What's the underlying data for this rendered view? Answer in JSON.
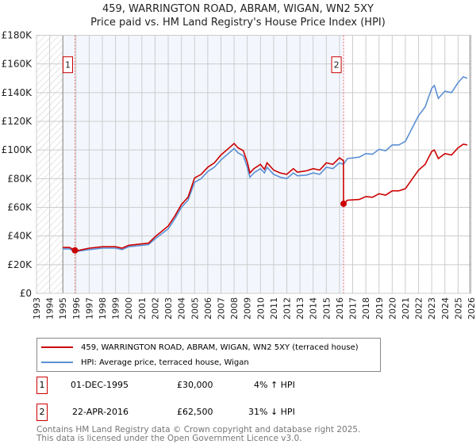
{
  "title": "459, WARRINGTON ROAD, ABRAM, WIGAN, WN2 5XY",
  "subtitle": "Price paid vs. HM Land Registry's House Price Index (HPI)",
  "chart_data": {
    "type": "line",
    "xlim": [
      1993,
      2026
    ],
    "ylim": [
      0,
      180000
    ],
    "yticks": [
      0,
      20000,
      40000,
      60000,
      80000,
      100000,
      120000,
      140000,
      160000,
      180000
    ],
    "ytick_labels": [
      "£0",
      "£20K",
      "£40K",
      "£60K",
      "£80K",
      "£100K",
      "£120K",
      "£140K",
      "£160K",
      "£180K"
    ],
    "xticks": [
      1993,
      1994,
      1995,
      1996,
      1997,
      1998,
      1999,
      2000,
      2001,
      2002,
      2003,
      2004,
      2005,
      2006,
      2007,
      2008,
      2009,
      2010,
      2011,
      2012,
      2013,
      2014,
      2015,
      2016,
      2017,
      2018,
      2019,
      2020,
      2021,
      2022,
      2023,
      2024,
      2025,
      2026
    ],
    "data_range": [
      1995,
      2025.9
    ],
    "series": [
      {
        "name": "459, WARRINGTON ROAD, ABRAM, WIGAN, WN2 5XY (terraced house)",
        "color": "#cc0000",
        "x": [
          1995,
          1995.5,
          1995.92,
          1996.2,
          1997,
          1998,
          1999,
          1999.5,
          2000,
          2001,
          2001.5,
          2002,
          2003,
          2003.5,
          2004,
          2004.5,
          2005,
          2005.5,
          2006,
          2006.5,
          2007,
          2007.5,
          2008,
          2008.3,
          2008.7,
          2009,
          2009.2,
          2009.5,
          2010,
          2010.3,
          2010.5,
          2011,
          2011.5,
          2012,
          2012.5,
          2012.8,
          2013.5,
          2014,
          2014.5,
          2015,
          2015.5,
          2016,
          2016.3,
          2016.31,
          2016.6,
          2017.5,
          2018,
          2018.5,
          2019,
          2019.5,
          2020,
          2020.5,
          2021,
          2021.5,
          2022,
          2022.5,
          2023,
          2023.2,
          2023.5,
          2024,
          2024.5,
          2025,
          2025.4,
          2025.7
        ],
        "y": [
          32000,
          32000,
          30000,
          30000,
          31500,
          32500,
          32500,
          31500,
          33500,
          34500,
          35000,
          39500,
          47000,
          54000,
          62000,
          67000,
          80500,
          83000,
          88000,
          91000,
          96500,
          100500,
          104500,
          101500,
          99500,
          91500,
          84000,
          87000,
          90000,
          86500,
          91000,
          86000,
          84000,
          83000,
          87000,
          84500,
          85500,
          87000,
          86000,
          91000,
          90000,
          94500,
          92500,
          62500,
          65000,
          65500,
          67500,
          67000,
          69500,
          68500,
          71500,
          71500,
          73000,
          79500,
          86000,
          90000,
          99000,
          100000,
          94000,
          97500,
          96500,
          101500,
          104000,
          103500
        ]
      },
      {
        "name": "HPI: Average price, terraced house, Wigan",
        "color": "#5b8fd4",
        "x": [
          1995,
          1995.5,
          1995.92,
          1996.2,
          1997,
          1998,
          1999,
          1999.5,
          2000,
          2001,
          2001.5,
          2002,
          2003,
          2003.5,
          2004,
          2004.5,
          2005,
          2005.5,
          2006,
          2006.5,
          2007,
          2007.5,
          2008,
          2008.3,
          2008.7,
          2009,
          2009.2,
          2009.5,
          2010,
          2010.3,
          2010.5,
          2011,
          2011.5,
          2012,
          2012.5,
          2012.8,
          2013.5,
          2014,
          2014.5,
          2015,
          2015.5,
          2016,
          2016.3,
          2016.6,
          2017.5,
          2018,
          2018.5,
          2019,
          2019.5,
          2020,
          2020.5,
          2021,
          2021.5,
          2022,
          2022.5,
          2023,
          2023.2,
          2023.5,
          2024,
          2024.5,
          2025,
          2025.4,
          2025.7
        ],
        "y": [
          31000,
          31000,
          29000,
          29500,
          30500,
          31500,
          31500,
          30500,
          32500,
          33500,
          34000,
          38000,
          45000,
          52000,
          60000,
          65000,
          77500,
          80000,
          85000,
          88000,
          93000,
          97000,
          101000,
          98000,
          96000,
          88000,
          81000,
          84000,
          87000,
          84000,
          88000,
          83000,
          81000,
          80000,
          84000,
          82000,
          82500,
          84000,
          83000,
          88000,
          87000,
          91000,
          90000,
          94000,
          95000,
          97500,
          97000,
          100500,
          99500,
          103500,
          103500,
          106000,
          115000,
          124000,
          130000,
          143000,
          145000,
          136000,
          141000,
          140000,
          147000,
          151000,
          150000
        ]
      }
    ],
    "annotations": [
      {
        "label": "1",
        "x": 1995.92,
        "y": 30000
      },
      {
        "label": "2",
        "x": 2016.31,
        "y": 62500
      }
    ]
  },
  "legend": {
    "red_label": "459, WARRINGTON ROAD, ABRAM, WIGAN, WN2 5XY (terraced house)",
    "blue_label": "HPI: Average price, terraced house, Wigan"
  },
  "sales": [
    {
      "num": "1",
      "date": "01-DEC-1995",
      "price": "£30,000",
      "hpi": "4% ↑ HPI"
    },
    {
      "num": "2",
      "date": "22-APR-2016",
      "price": "£62,500",
      "hpi": "31% ↓ HPI"
    }
  ],
  "footer": {
    "line1": "Contains HM Land Registry data © Crown copyright and database right 2025.",
    "line2": "This data is licensed under the Open Government Licence v3.0."
  }
}
